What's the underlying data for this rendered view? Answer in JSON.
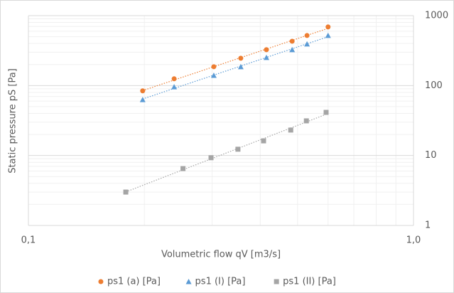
{
  "chart_data": {
    "type": "scatter",
    "x_label": "Volumetric flow qV [m3/s]",
    "y_label": "Static pressure pS [Pa]",
    "log_x": true,
    "log_y": true,
    "grid": true,
    "legend": "bottom",
    "trendline": true,
    "xlim": [
      0.1,
      1
    ],
    "xticks": [
      {
        "value": 0.1,
        "label": "0,1"
      },
      {
        "value": 1,
        "label": "1,0"
      }
    ],
    "ylim": [
      1,
      1000
    ],
    "yticks": [
      1,
      10,
      100,
      1000
    ],
    "series": [
      {
        "name": "ps1 (a) [Pa]",
        "color": "#ed7d31",
        "marker": "circle",
        "x": [
          0.198,
          0.239,
          0.303,
          0.356,
          0.415,
          0.484,
          0.529,
          0.6
        ],
        "values": [
          84,
          125,
          186,
          246,
          326,
          431,
          520,
          689
        ]
      },
      {
        "name": "ps1 (I) [Pa]",
        "color": "#5b9bd5",
        "marker": "triangle",
        "x": [
          0.198,
          0.239,
          0.303,
          0.356,
          0.415,
          0.484,
          0.529,
          0.6
        ],
        "values": [
          63,
          96,
          140,
          186,
          252,
          326,
          393,
          520
        ]
      },
      {
        "name": "ps1 (II) [Pa]",
        "color": "#a5a5a5",
        "marker": "square",
        "x": [
          0.179,
          0.252,
          0.298,
          0.35,
          0.408,
          0.48,
          0.527,
          0.593
        ],
        "values": [
          3.0,
          6.5,
          9.3,
          12.3,
          16.2,
          23.1,
          31.3,
          41.4
        ]
      }
    ]
  }
}
